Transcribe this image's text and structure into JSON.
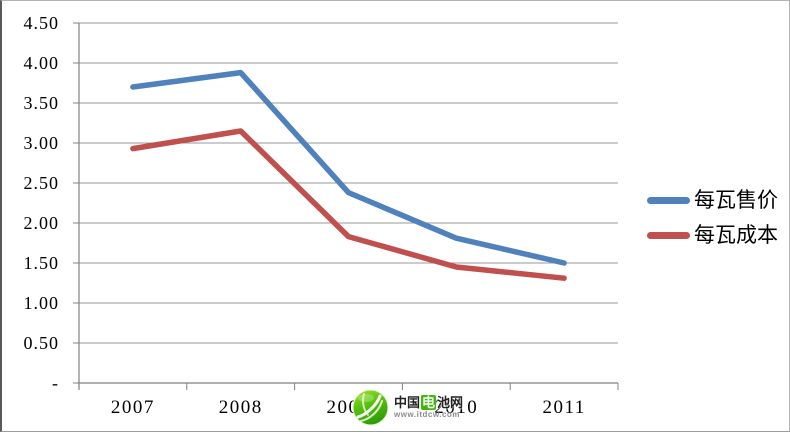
{
  "chart_data": {
    "type": "line",
    "title": "",
    "xlabel": "",
    "ylabel": "",
    "categories": [
      "2007",
      "2008",
      "2009",
      "2010",
      "2011"
    ],
    "series": [
      {
        "name": "每瓦售价",
        "color": "#4F81BD",
        "values": [
          3.7,
          3.88,
          2.38,
          1.81,
          1.5
        ]
      },
      {
        "name": "每瓦成本",
        "color": "#C0504D",
        "values": [
          2.93,
          3.15,
          1.83,
          1.45,
          1.31
        ]
      }
    ],
    "ylim": [
      0,
      4.5
    ],
    "ytick_step": 0.5,
    "ytick_labels": [
      "-",
      "0.50",
      "1.00",
      "1.50",
      "2.00",
      "2.50",
      "3.00",
      "3.50",
      "4.00",
      "4.50"
    ],
    "grid": true,
    "legend_position": "right"
  },
  "colors": {
    "background": "#ffffff",
    "gridline": "#999999",
    "axis": "#808080",
    "label": "#000000"
  },
  "watermark": {
    "name_prefix": "中国",
    "name_highlight": "电",
    "name_suffix": "池网",
    "url": "www.itdcw.com",
    "logo_green_light": "#8fd418",
    "logo_green_dark": "#2f9e06"
  }
}
